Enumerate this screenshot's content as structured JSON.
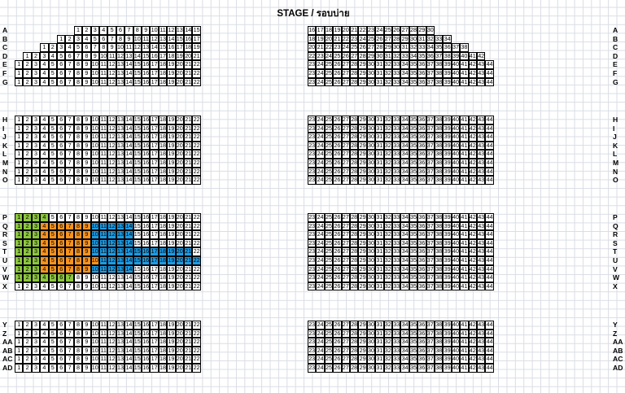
{
  "title": "STAGE / รอบบ่าย",
  "rows": [
    {
      "label": "A",
      "left": [
        1,
        15
      ],
      "right": [
        16,
        30
      ]
    },
    {
      "label": "B",
      "left": [
        1,
        17
      ],
      "right": [
        18,
        34
      ]
    },
    {
      "label": "C",
      "left": [
        1,
        19
      ],
      "right": [
        20,
        38
      ]
    },
    {
      "label": "D",
      "left": [
        1,
        21
      ],
      "right": [
        22,
        42
      ]
    },
    {
      "label": "E",
      "left": [
        1,
        22
      ],
      "right": [
        23,
        44
      ]
    },
    {
      "label": "F",
      "left": [
        1,
        22
      ],
      "right": [
        23,
        44
      ]
    },
    {
      "label": "G",
      "left": [
        1,
        22
      ],
      "right": [
        23,
        44
      ]
    },
    {
      "label": "H",
      "left": [
        1,
        22
      ],
      "right": [
        23,
        44
      ]
    },
    {
      "label": "I",
      "left": [
        1,
        22
      ],
      "right": [
        23,
        44
      ]
    },
    {
      "label": "J",
      "left": [
        1,
        22
      ],
      "right": [
        23,
        44
      ]
    },
    {
      "label": "K",
      "left": [
        1,
        22
      ],
      "right": [
        23,
        44
      ]
    },
    {
      "label": "L",
      "left": [
        1,
        22
      ],
      "right": [
        23,
        44
      ]
    },
    {
      "label": "M",
      "left": [
        1,
        22
      ],
      "right": [
        23,
        44
      ]
    },
    {
      "label": "N",
      "left": [
        1,
        22
      ],
      "right": [
        23,
        44
      ]
    },
    {
      "label": "O",
      "left": [
        1,
        22
      ],
      "right": [
        23,
        44
      ]
    },
    {
      "label": "P",
      "left": [
        1,
        22
      ],
      "right": [
        23,
        44
      ]
    },
    {
      "label": "Q",
      "left": [
        1,
        22
      ],
      "right": [
        23,
        44
      ]
    },
    {
      "label": "R",
      "left": [
        1,
        22
      ],
      "right": [
        23,
        44
      ]
    },
    {
      "label": "S",
      "left": [
        1,
        22
      ],
      "right": [
        23,
        44
      ]
    },
    {
      "label": "T",
      "left": [
        1,
        22
      ],
      "right": [
        23,
        44
      ]
    },
    {
      "label": "U",
      "left": [
        1,
        22
      ],
      "right": [
        23,
        44
      ]
    },
    {
      "label": "V",
      "left": [
        1,
        22
      ],
      "right": [
        23,
        44
      ]
    },
    {
      "label": "W",
      "left": [
        1,
        22
      ],
      "right": [
        23,
        44
      ]
    },
    {
      "label": "X",
      "left": [
        1,
        22
      ],
      "right": [
        23,
        44
      ]
    },
    {
      "label": "Y",
      "left": [
        1,
        22
      ],
      "right": [
        23,
        44
      ]
    },
    {
      "label": "Z",
      "left": [
        1,
        22
      ],
      "right": [
        23,
        44
      ]
    },
    {
      "label": "AA",
      "left": [
        1,
        22
      ],
      "right": [
        23,
        44
      ]
    },
    {
      "label": "AB",
      "left": [
        1,
        22
      ],
      "right": [
        23,
        44
      ]
    },
    {
      "label": "AC",
      "left": [
        1,
        22
      ],
      "right": [
        23,
        44
      ]
    },
    {
      "label": "AD",
      "left": [
        1,
        22
      ],
      "right": [
        23,
        44
      ]
    }
  ],
  "highlights": {
    "P": {
      "green": [
        1,
        4
      ]
    },
    "Q": {
      "green": [
        1,
        3
      ],
      "orange": [
        4,
        9
      ],
      "blue": [
        10,
        14
      ]
    },
    "R": {
      "green": [
        1,
        3
      ],
      "orange": [
        4,
        9
      ],
      "blue": [
        10,
        14
      ]
    },
    "S": {
      "green": [
        1,
        3
      ],
      "orange": [
        4,
        9
      ],
      "blue": [
        10,
        14
      ]
    },
    "T": {
      "green": [
        1,
        3
      ],
      "orange": [
        4,
        9
      ],
      "blue": [
        10,
        21
      ]
    },
    "U": {
      "green": [
        1,
        3
      ],
      "orange": [
        4,
        10
      ],
      "blue": [
        11,
        22
      ]
    },
    "V": {
      "green": [
        1,
        3
      ],
      "orange": [
        4,
        9
      ],
      "blue": [
        10,
        14
      ]
    },
    "W": {
      "green": [
        1,
        7
      ]
    }
  },
  "colors": {
    "green": "#8cc63e",
    "orange": "#f7931e",
    "blue": "#1d9be3"
  }
}
